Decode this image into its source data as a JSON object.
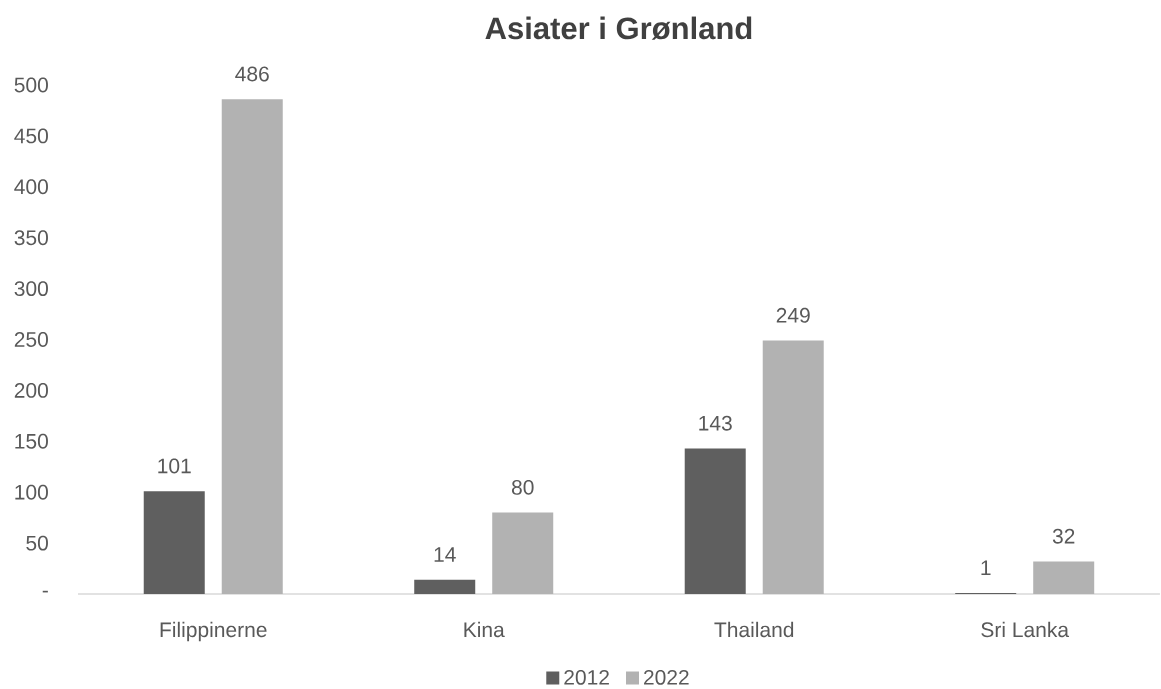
{
  "chart_data": {
    "type": "bar",
    "title": "Asiater i Grønland",
    "categories": [
      "Filippinerne",
      "Kina",
      "Thailand",
      "Sri Lanka"
    ],
    "series": [
      {
        "name": "2012",
        "color": "#5f5f5f",
        "values": [
          101,
          14,
          143,
          1
        ]
      },
      {
        "name": "2022",
        "color": "#b2b2b2",
        "values": [
          486,
          80,
          249,
          32
        ]
      }
    ],
    "ylim": [
      0,
      500
    ],
    "yticks": [
      {
        "value": 0,
        "label": "-"
      },
      50,
      100,
      150,
      200,
      250,
      300,
      350,
      400,
      450,
      500
    ],
    "legend": "bottom",
    "data_labels": true
  }
}
